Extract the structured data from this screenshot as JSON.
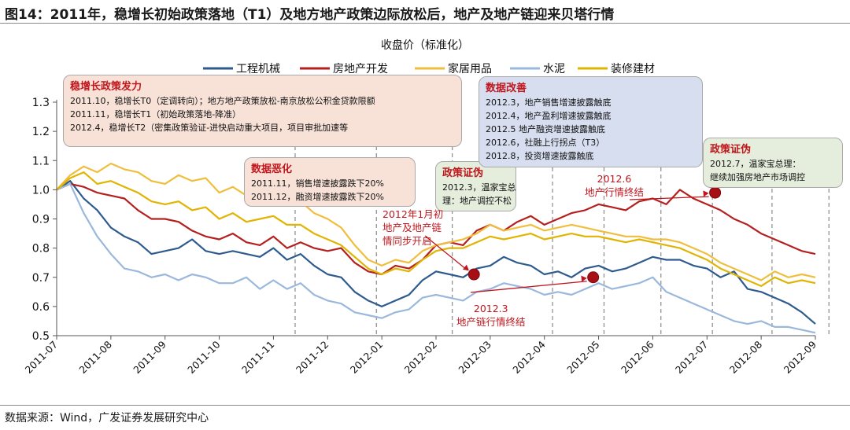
{
  "figure": {
    "title": "图14：2011年，稳增长初始政策落地（T1）及地方地产政策边际放松后，地产及地产链迎来贝塔行情",
    "source": "数据来源：Wind，广发证券发展研究中心"
  },
  "chart_data": {
    "type": "line",
    "title": "收盘价（标准化）",
    "xlabel": "",
    "ylabel": "",
    "ylim": [
      0.5,
      1.3
    ],
    "yticks": [
      "0.5",
      "0.6",
      "0.7",
      "0.8",
      "0.9",
      "1.0",
      "1.1",
      "1.2",
      "1.3"
    ],
    "categories": [
      "2011-07",
      "2011-08",
      "2011-09",
      "2011-10",
      "2011-11",
      "2011-12",
      "2012-01",
      "2012-02",
      "2012-03",
      "2012-04",
      "2012-05",
      "2012-06",
      "2012-07",
      "2012-08",
      "2012-09"
    ],
    "x": [
      0,
      0.25,
      0.5,
      0.75,
      1.0,
      1.25,
      1.5,
      1.75,
      2.0,
      2.25,
      2.5,
      2.75,
      3.0,
      3.25,
      3.5,
      3.75,
      4.0,
      4.25,
      4.5,
      4.75,
      5.0,
      5.25,
      5.5,
      5.75,
      6.0,
      6.25,
      6.5,
      6.75,
      7.0,
      7.25,
      7.5,
      7.75,
      8.0,
      8.25,
      8.5,
      8.75,
      9.0,
      9.25,
      9.5,
      9.75,
      10.0,
      10.25,
      10.5,
      10.75,
      11.0,
      11.25,
      11.5,
      11.75,
      12.0,
      12.25,
      12.5,
      12.75,
      13.0,
      13.25,
      13.5,
      13.75,
      14.0
    ],
    "series": [
      {
        "name": "工程机械",
        "color": "#2e5b8e",
        "values": [
          1.0,
          1.03,
          0.97,
          0.93,
          0.87,
          0.84,
          0.82,
          0.78,
          0.79,
          0.8,
          0.83,
          0.79,
          0.78,
          0.79,
          0.78,
          0.77,
          0.8,
          0.76,
          0.78,
          0.74,
          0.71,
          0.7,
          0.65,
          0.62,
          0.6,
          0.62,
          0.64,
          0.69,
          0.72,
          0.71,
          0.7,
          0.73,
          0.74,
          0.77,
          0.75,
          0.74,
          0.71,
          0.72,
          0.7,
          0.73,
          0.74,
          0.72,
          0.73,
          0.75,
          0.77,
          0.76,
          0.76,
          0.74,
          0.73,
          0.7,
          0.72,
          0.66,
          0.65,
          0.63,
          0.61,
          0.58,
          0.54
        ]
      },
      {
        "name": "房地产开发",
        "color": "#b5201f",
        "values": [
          1.0,
          1.02,
          1.01,
          0.99,
          0.98,
          0.97,
          0.93,
          0.9,
          0.9,
          0.89,
          0.86,
          0.84,
          0.83,
          0.85,
          0.82,
          0.81,
          0.84,
          0.8,
          0.82,
          0.8,
          0.79,
          0.8,
          0.75,
          0.72,
          0.71,
          0.74,
          0.73,
          0.76,
          0.81,
          0.82,
          0.81,
          0.86,
          0.88,
          0.86,
          0.89,
          0.91,
          0.88,
          0.9,
          0.92,
          0.93,
          0.95,
          0.94,
          0.93,
          0.96,
          0.97,
          0.95,
          1.0,
          0.97,
          0.95,
          0.93,
          0.9,
          0.88,
          0.85,
          0.83,
          0.81,
          0.79,
          0.78
        ]
      },
      {
        "name": "家居用品",
        "color": "#f0be3c",
        "values": [
          1.0,
          1.05,
          1.08,
          1.06,
          1.09,
          1.07,
          1.06,
          1.03,
          1.02,
          1.05,
          1.03,
          1.04,
          0.99,
          1.01,
          0.98,
          0.99,
          1.0,
          0.97,
          0.96,
          0.92,
          0.9,
          0.87,
          0.81,
          0.76,
          0.74,
          0.76,
          0.75,
          0.79,
          0.81,
          0.82,
          0.83,
          0.85,
          0.88,
          0.86,
          0.87,
          0.88,
          0.86,
          0.87,
          0.88,
          0.87,
          0.86,
          0.85,
          0.84,
          0.84,
          0.83,
          0.83,
          0.82,
          0.8,
          0.78,
          0.75,
          0.73,
          0.71,
          0.69,
          0.72,
          0.7,
          0.71,
          0.7
        ]
      },
      {
        "name": "水泥",
        "color": "#9ab8dc",
        "values": [
          1.0,
          1.02,
          0.92,
          0.84,
          0.78,
          0.73,
          0.72,
          0.7,
          0.71,
          0.69,
          0.71,
          0.7,
          0.68,
          0.68,
          0.7,
          0.66,
          0.69,
          0.66,
          0.68,
          0.64,
          0.62,
          0.61,
          0.58,
          0.57,
          0.56,
          0.58,
          0.59,
          0.63,
          0.64,
          0.63,
          0.62,
          0.65,
          0.66,
          0.68,
          0.67,
          0.66,
          0.64,
          0.65,
          0.64,
          0.66,
          0.68,
          0.66,
          0.67,
          0.68,
          0.7,
          0.65,
          0.63,
          0.61,
          0.59,
          0.57,
          0.55,
          0.54,
          0.55,
          0.53,
          0.53,
          0.52,
          0.51
        ]
      },
      {
        "name": "装修建材",
        "color": "#e0b400",
        "values": [
          1.0,
          1.04,
          1.06,
          1.02,
          1.03,
          1.01,
          0.99,
          0.96,
          0.95,
          0.96,
          0.93,
          0.94,
          0.9,
          0.92,
          0.89,
          0.9,
          0.91,
          0.88,
          0.88,
          0.85,
          0.83,
          0.81,
          0.77,
          0.73,
          0.71,
          0.73,
          0.72,
          0.76,
          0.79,
          0.8,
          0.8,
          0.82,
          0.84,
          0.83,
          0.84,
          0.85,
          0.83,
          0.84,
          0.85,
          0.84,
          0.84,
          0.83,
          0.82,
          0.83,
          0.82,
          0.81,
          0.8,
          0.78,
          0.76,
          0.73,
          0.71,
          0.69,
          0.67,
          0.7,
          0.68,
          0.69,
          0.68
        ]
      }
    ],
    "event_lines": [
      4.4,
      5.9,
      7.3,
      9.15,
      10.1,
      11.15,
      12.1,
      13.2,
      14.25
    ],
    "markers": [
      {
        "x": 7.7,
        "y": 0.71,
        "label": [
          "2012年1月初",
          "地产及地产链",
          "情同步开启"
        ]
      },
      {
        "x": 9.9,
        "y": 0.7,
        "label": [
          "2012.3",
          "地产链行情终结"
        ]
      },
      {
        "x": 12.15,
        "y": 0.99,
        "label": [
          "2012.6",
          "地产行情终结"
        ]
      }
    ]
  },
  "annotations": {
    "policy1": {
      "title": "稳增长政策发力",
      "lines": [
        "2011.10，稳增长T0（定调转向）；地方地产政策放松-南京放松公积金贷款限额",
        "2011.11，稳增长T1（初始政策落地-降准）",
        "2012.4，稳增长T2（密集政策验证-进快启动重大项目，项目审批加速等"
      ]
    },
    "data_worse": {
      "title": "数据恶化",
      "lines": [
        "2011.11，销售增速披露跌下20%",
        "2011.12，融资增速披露跌下20%"
      ]
    },
    "policy_false1": {
      "title": "政策证伪",
      "lines": [
        "2012.3，温家宝总",
        "理：地产调控不松"
      ]
    },
    "data_better": {
      "title": "数据改善",
      "lines": [
        "2012.3，地产销售增速披露触底",
        "2012.4，地产盈利增速披露触底",
        "2012.5 地产融资增速披露触底",
        "2012.6，社融上行拐点（T3）",
        "2012.8，投资增速披露触底"
      ]
    },
    "policy_false2": {
      "title": "政策证伪",
      "lines": [
        "2012.7，温家宝总理：",
        "继续加强房地产市场调控"
      ]
    }
  }
}
